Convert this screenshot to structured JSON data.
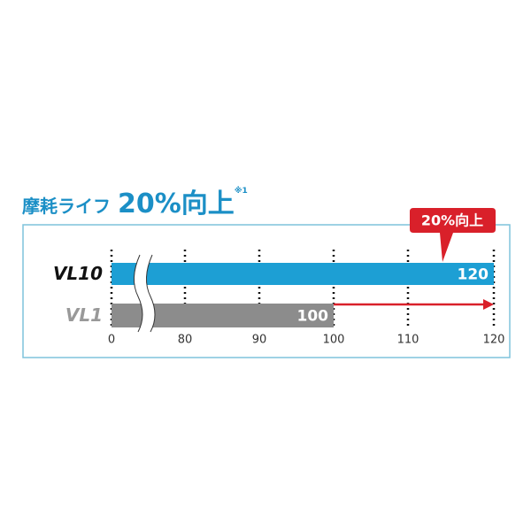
{
  "chart_data": {
    "type": "bar",
    "orientation": "horizontal",
    "title": "摩耗ライフ",
    "headline": "20%向上",
    "footnote": "※1",
    "categories": [
      "VL10",
      "VL1"
    ],
    "values": [
      120,
      100
    ],
    "value_labels": [
      "120",
      "100"
    ],
    "x_ticks": [
      "0",
      "80",
      "90",
      "100",
      "110",
      "120"
    ],
    "axis_break": "between 0 and 80",
    "xlim": [
      0,
      120
    ],
    "grid": "dotted vertical",
    "annotation": "20%向上",
    "colors": {
      "VL10": "#1d9fd4",
      "VL1": "#8c8c8c",
      "arrow": "#d9202a",
      "callout": "#d9202a",
      "title": "#1b8fc6",
      "frame": "#7fc3dc"
    }
  }
}
